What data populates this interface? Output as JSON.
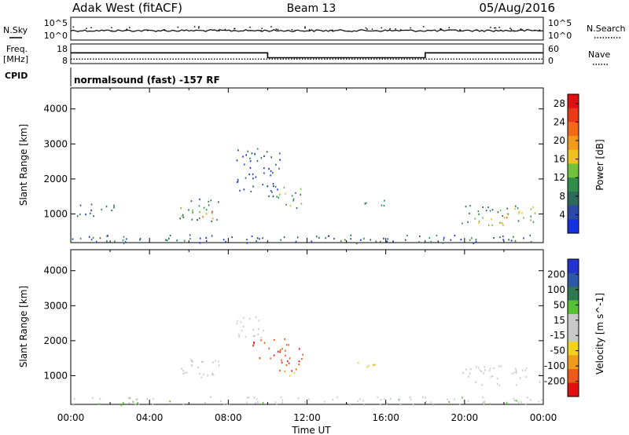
{
  "header": {
    "station": "Adak West (fitACF)",
    "beam": "Beam 13",
    "date": "05/Aug/2016"
  },
  "left_labels": {
    "nsky": "N.Sky",
    "freq_line1": "Freq.",
    "freq_line2": "[MHz]",
    "cpid": "CPID"
  },
  "right_labels": {
    "nsearch": "N.Search",
    "nave": "Nave"
  },
  "cpid_text": "normalsound (fast) -157 RF",
  "noise_ticks": [
    "10^5",
    "10^0"
  ],
  "freq_ticks": [
    "18",
    "8"
  ],
  "nave_ticks": [
    "60",
    "0"
  ],
  "colors": {
    "power_scale": [
      "#1530e0",
      "#2b4aa8",
      "#2e6a5a",
      "#2f8e4a",
      "#6fc23a",
      "#f0c21a",
      "#f29a1a",
      "#f06a18",
      "#e83a18",
      "#e01010"
    ],
    "velocity_scale": [
      "#2432d2",
      "#2d57a8",
      "#2e7a50",
      "#56c232",
      "#c8c8c8",
      "#c8c8c8",
      "#f2d21a",
      "#f29a1a",
      "#ee5a18",
      "#e01010"
    ]
  },
  "chart_data": [
    {
      "type": "line",
      "panel": "noise",
      "y_ticks": [
        "10^5",
        "10^0"
      ],
      "series": [
        {
          "name": "N.Sky",
          "style": "solid"
        },
        {
          "name": "N.Search",
          "style": "dotted"
        }
      ],
      "note_values": "approximately flat near 10^2 across the day"
    },
    {
      "type": "line",
      "panel": "frequency_nave",
      "left_axis": {
        "label": "Freq. [MHz]",
        "ylim": [
          8,
          18
        ],
        "ticks": [
          "18",
          "8"
        ]
      },
      "right_axis": {
        "label": "Nave",
        "ylim": [
          0,
          60
        ],
        "ticks": [
          "60",
          "0"
        ]
      },
      "series": [
        {
          "name": "Freq. [MHz]",
          "x": [
            "00:00",
            "10:00",
            "10:00",
            "18:00",
            "18:00",
            "24:00"
          ],
          "values": [
            13.5,
            13.5,
            11,
            11,
            13.5,
            13.5
          ]
        },
        {
          "name": "Nave",
          "x": [
            "00:00",
            "24:00"
          ],
          "values": [
            14,
            14
          ]
        }
      ]
    },
    {
      "type": "heatmap",
      "panel": "power",
      "ylabel": "Slant Range [km]",
      "ylim": [
        180,
        4600
      ],
      "yticks": [
        "1000",
        "2000",
        "3000",
        "4000"
      ],
      "colorbar": {
        "label": "Power [dB]",
        "ticks": [
          "4",
          "8",
          "12",
          "16",
          "20",
          "24",
          "28"
        ],
        "range": [
          0,
          30
        ]
      },
      "regions": [
        {
          "t": [
            0.2,
            2.2
          ],
          "r": [
            950,
            1350
          ],
          "value": 5
        },
        {
          "t": [
            5.5,
            7.6
          ],
          "r": [
            800,
            1500
          ],
          "value": 10
        },
        {
          "t": [
            6.6,
            7.2
          ],
          "r": [
            700,
            1100
          ],
          "value": 20
        },
        {
          "t": [
            8.4,
            10.6
          ],
          "r": [
            1500,
            2900
          ],
          "value": 5
        },
        {
          "t": [
            10.4,
            11.8
          ],
          "r": [
            1150,
            1800
          ],
          "value": 11
        },
        {
          "t": [
            14.4,
            16.0
          ],
          "r": [
            1250,
            1450
          ],
          "value": 8
        },
        {
          "t": [
            19.8,
            23.8
          ],
          "r": [
            750,
            1300
          ],
          "value": 12
        },
        {
          "t": [
            21.2,
            22.6
          ],
          "r": [
            700,
            1000
          ],
          "value": 18
        },
        {
          "t": [
            0.0,
            24.0
          ],
          "r": [
            180,
            420
          ],
          "value": 6
        }
      ]
    },
    {
      "type": "heatmap",
      "panel": "velocity",
      "ylabel": "Slant Range [km]",
      "ylim": [
        180,
        4600
      ],
      "yticks": [
        "1000",
        "2000",
        "3000",
        "4000"
      ],
      "xlabel": "Time UT",
      "xticks": [
        "00:00",
        "04:00",
        "08:00",
        "12:00",
        "16:00",
        "20:00",
        "00:00"
      ],
      "colorbar": {
        "label": "Velocity [m s^-1]",
        "ticks": [
          "200",
          "100",
          "50",
          "15",
          "-15",
          "-50",
          "-100",
          "-200"
        ],
        "range": [
          -250,
          250
        ]
      },
      "regions": [
        {
          "t": [
            5.5,
            7.6
          ],
          "r": [
            800,
            1500
          ],
          "value": 0
        },
        {
          "t": [
            8.4,
            9.8
          ],
          "r": [
            2100,
            2900
          ],
          "value": 0
        },
        {
          "t": [
            9.2,
            11.2
          ],
          "r": [
            1500,
            2100
          ],
          "value": -180
        },
        {
          "t": [
            10.4,
            11.8
          ],
          "r": [
            1150,
            1800
          ],
          "value": -200
        },
        {
          "t": [
            10.5,
            11.6
          ],
          "r": [
            1000,
            1150
          ],
          "value": -80
        },
        {
          "t": [
            14.4,
            16.0
          ],
          "r": [
            1250,
            1450
          ],
          "value": -80
        },
        {
          "t": [
            19.8,
            23.8
          ],
          "r": [
            750,
            1300
          ],
          "value": 0
        },
        {
          "t": [
            0.0,
            24.0
          ],
          "r": [
            180,
            420
          ],
          "value": 30
        }
      ]
    }
  ]
}
